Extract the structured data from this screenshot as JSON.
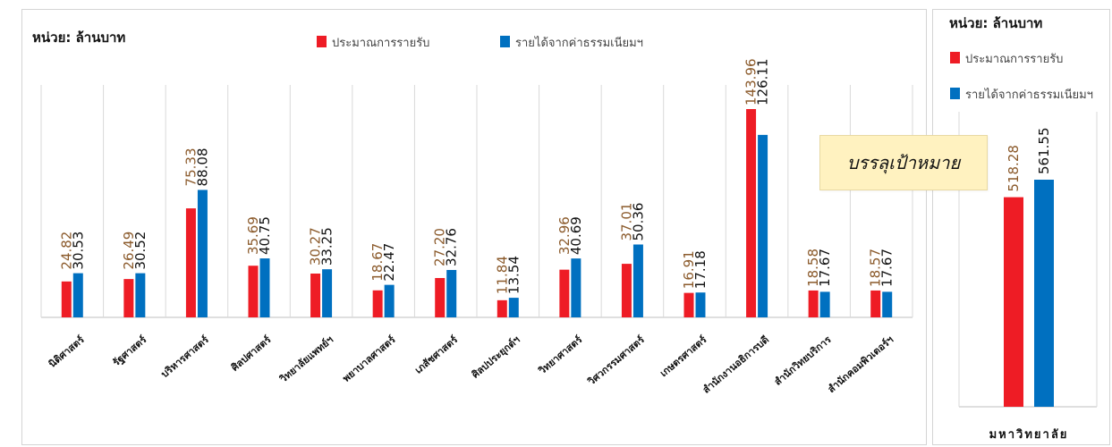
{
  "colors": {
    "budget": "#ee1c25",
    "fee_income": "#0070c0",
    "budget_label": "#8b5a2b",
    "fee_label": "#111111",
    "banner_bg": "#fff2c0"
  },
  "main": {
    "unit": "หน่วย: ล้านบาท",
    "legend": [
      "ประมาณการรายรับ",
      "รายได้จากค่าธรรมเนียมฯ"
    ]
  },
  "right": {
    "unit": "หน่วย: ล้านบาท",
    "legend": [
      "ประมาณการรายรับ",
      "รายได้จากค่าธรรมเนียมฯ"
    ]
  },
  "banner": {
    "text": "บรรลุเป้าหมาย"
  },
  "chart_data": [
    {
      "type": "bar",
      "categories": [
        "นิติศาสตร์",
        "รัฐศาสตร์",
        "บริหารศาสตร์",
        "ศิลปศาสตร์",
        "วิทยาลัยแพทย์ฯ",
        "พยาบาลศาสตร์",
        "เภสัชศาสตร์",
        "ศิลปประยุกต์ฯ",
        "วิทยาศาสตร์",
        "วิศวกรรมศาสตร์",
        "เกษตรศาสตร์",
        "สำนักงานอธิการบดี",
        "สำนักวิทยบริการ",
        "สำนักคอมพิวเตอร์ฯ"
      ],
      "series": [
        {
          "name": "ประมาณการรายรับ",
          "values": [
            24.82,
            26.49,
            75.33,
            35.69,
            30.27,
            18.67,
            27.2,
            11.84,
            32.96,
            37.01,
            16.91,
            143.96,
            18.58,
            18.57
          ],
          "labels": [
            "24.82",
            "26.49",
            "75.33",
            "35.69",
            "30.27",
            "18.67",
            "27.20",
            "11.84",
            "32.96",
            "37.01",
            "16.91",
            "143.96",
            "18.58",
            "18.57"
          ]
        },
        {
          "name": "รายได้จากค่าธรรมเนียมฯ",
          "values": [
            30.53,
            30.52,
            88.08,
            40.75,
            33.25,
            22.47,
            32.76,
            13.54,
            40.69,
            50.36,
            17.18,
            126.11,
            17.67,
            17.67
          ],
          "labels": [
            "30.53",
            "30.52",
            "88.08",
            "40.75",
            "33.25",
            "22.47",
            "32.76",
            "13.54",
            "40.69",
            "50.36",
            "17.18",
            "126.11",
            "17.67",
            "17.67"
          ]
        }
      ],
      "ylim": [
        0,
        160
      ],
      "ylabel": "หน่วย: ล้านบาท",
      "legend_position": "top",
      "grid": false
    },
    {
      "type": "bar",
      "categories": [
        "มหาวิทยาลัย"
      ],
      "series": [
        {
          "name": "ประมาณการรายรับ",
          "values": [
            518.28
          ],
          "labels": [
            "518.28"
          ]
        },
        {
          "name": "รายได้จากค่าธรรมเนียมฯ",
          "values": [
            561.55
          ],
          "labels": [
            "561.55"
          ]
        }
      ],
      "ylim": [
        0,
        720
      ],
      "ylabel": "หน่วย: ล้านบาท",
      "legend_position": "top-left",
      "grid": false
    }
  ]
}
